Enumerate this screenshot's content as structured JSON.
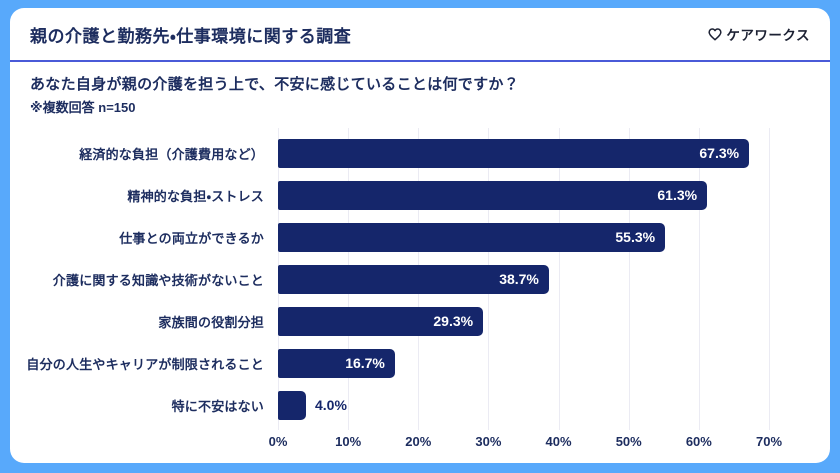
{
  "header": {
    "title": "親の介護と勤務先・仕事環境に関する調査",
    "logo": {
      "icon": "heart-outline-icon",
      "text": "ケアワークス"
    }
  },
  "question": {
    "text": "あなた自身が親の介護を担う上で、不安に感じていることは何ですか？",
    "note": "※複数回答 n=150"
  },
  "chart_data": {
    "type": "bar",
    "orientation": "horizontal",
    "categories": [
      "経済的な負担（介護費用など）",
      "精神的な負担・ストレス",
      "仕事との両立ができるか",
      "介護に関する知識や技術がないこと",
      "家族間の役割分担",
      "自分の人生やキャリアが制限されること",
      "特に不安はない"
    ],
    "values": [
      67.3,
      61.3,
      55.3,
      38.7,
      29.3,
      16.7,
      4.0
    ],
    "value_labels": [
      "67.3%",
      "61.3%",
      "55.3%",
      "38.7%",
      "29.3%",
      "16.7%",
      "4.0%"
    ],
    "xlim": [
      0,
      70
    ],
    "xticks": [
      "0%",
      "10%",
      "20%",
      "30%",
      "40%",
      "50%",
      "60%",
      "70%"
    ],
    "grid": "vertical-light",
    "legend": "none",
    "title": "",
    "xlabel": "",
    "ylabel": ""
  },
  "colors": {
    "frame": "#58a9fb",
    "card": "#ffffff",
    "bar": "#15266b",
    "text": "#1d2d5f",
    "divider": "#4a5ad8",
    "gridline": "#ebebf3",
    "value_inside": "#ffffff",
    "value_outside": "#15266b"
  }
}
